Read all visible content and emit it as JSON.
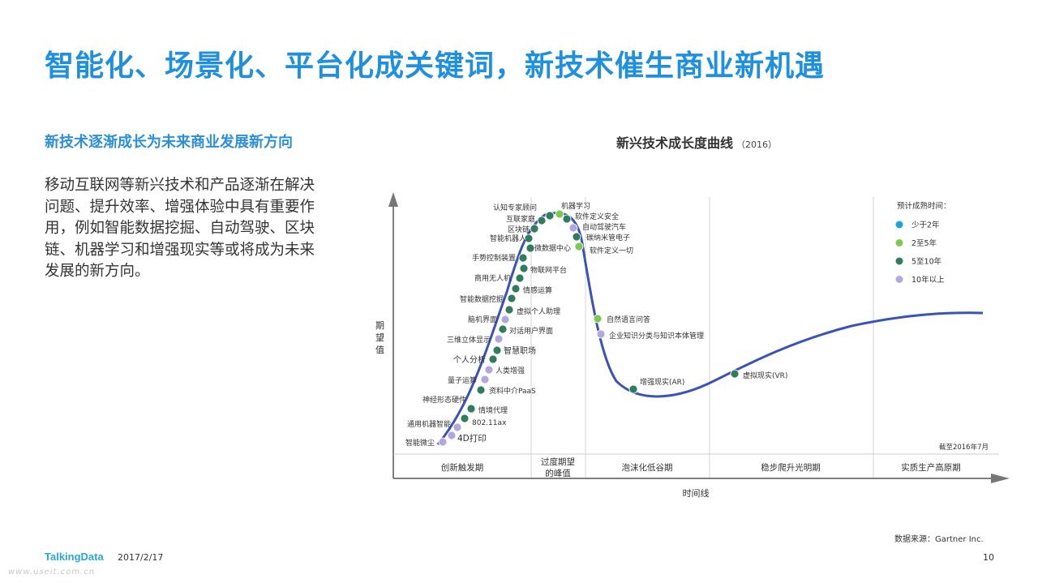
{
  "title": "智能化、场景化、平台化成关键词，新技术催生商业新机遇",
  "subtitle": "新技术逐渐成长为未来商业发展新方向",
  "body": "移动互联网等新兴技术和产品逐渐在解决问题、提升效率、增强体验中具有重要作用，例如智能数据挖掘、自动驾驶、区块链、机器学习和增强现实等或将成为未来发展的新方向。",
  "chart": {
    "title": "新兴技术成长度曲线",
    "year": "（2016）",
    "y_axis": "期望值",
    "x_axis": "时间线",
    "as_of": "截至2016年7月",
    "phases": [
      "创新触发期",
      "过度期望",
      "的峰值",
      "泡沫化低谷期",
      "稳步爬升光明期",
      "实质生产高原期"
    ],
    "legend": {
      "title": "预计成熟时间：",
      "items": [
        {
          "label": "少于2年",
          "color": "#1aa3e0"
        },
        {
          "label": "2至5年",
          "color": "#7dc855"
        },
        {
          "label": "5至10年",
          "color": "#2f7d5c"
        },
        {
          "label": "10年以上",
          "color": "#b3a7e0"
        }
      ]
    },
    "technologies": [
      {
        "label": "智能微尘",
        "maturity": "10年以上"
      },
      {
        "label": "4D打印",
        "maturity": "10年以上"
      },
      {
        "label": "通用机器智能",
        "maturity": "10年以上"
      },
      {
        "label": "802.11ax",
        "maturity": "5至10年"
      },
      {
        "label": "神经形态硬件",
        "maturity": "10年以上"
      },
      {
        "label": "情境代理",
        "maturity": "5至10年"
      },
      {
        "label": "资料中介PaaS",
        "maturity": "5至10年"
      },
      {
        "label": "量子运算",
        "maturity": "10年以上"
      },
      {
        "label": "人类增强",
        "maturity": "10年以上"
      },
      {
        "label": "个人分析",
        "maturity": "5至10年"
      },
      {
        "label": "智慧职场",
        "maturity": "5至10年"
      },
      {
        "label": "三维立体显示",
        "maturity": "10年以上"
      },
      {
        "label": "对话用户界面",
        "maturity": "5至10年"
      },
      {
        "label": "脑机界面",
        "maturity": "10年以上"
      },
      {
        "label": "虚拟个人助理",
        "maturity": "5至10年"
      },
      {
        "label": "智能数据挖掘",
        "maturity": "5至10年"
      },
      {
        "label": "情感运算",
        "maturity": "5至10年"
      },
      {
        "label": "商用无人机",
        "maturity": "5至10年"
      },
      {
        "label": "物联网平台",
        "maturity": "5至10年"
      },
      {
        "label": "手势控制装置",
        "maturity": "5至10年"
      },
      {
        "label": "微数据中心",
        "maturity": "5至10年"
      },
      {
        "label": "智能机器人",
        "maturity": "5至10年"
      },
      {
        "label": "区块链",
        "maturity": "5至10年"
      },
      {
        "label": "互联家庭",
        "maturity": "5至10年"
      },
      {
        "label": "认知专家顾问",
        "maturity": "5至10年"
      },
      {
        "label": "机器学习",
        "maturity": "2至5年"
      },
      {
        "label": "软件定义安全",
        "maturity": "5至10年"
      },
      {
        "label": "自动驾驶汽车",
        "maturity": "10年以上"
      },
      {
        "label": "碳纳米管电子",
        "maturity": "5至10年"
      },
      {
        "label": "软件定义一切",
        "maturity": "2至5年"
      },
      {
        "label": "自然语言问答",
        "maturity": "2至5年"
      },
      {
        "label": "企业知识分类与知识本体管理",
        "maturity": "10年以上"
      },
      {
        "label": "增强现实(AR)",
        "maturity": "5至10年"
      },
      {
        "label": "虚拟现实(VR)",
        "maturity": "5至10年"
      }
    ]
  },
  "source": "数据来源：Gartner Inc.",
  "footer": {
    "logo": "TalkingData",
    "date": "2017/2/17",
    "page": "10",
    "watermark": "www.useit.com.cn"
  }
}
